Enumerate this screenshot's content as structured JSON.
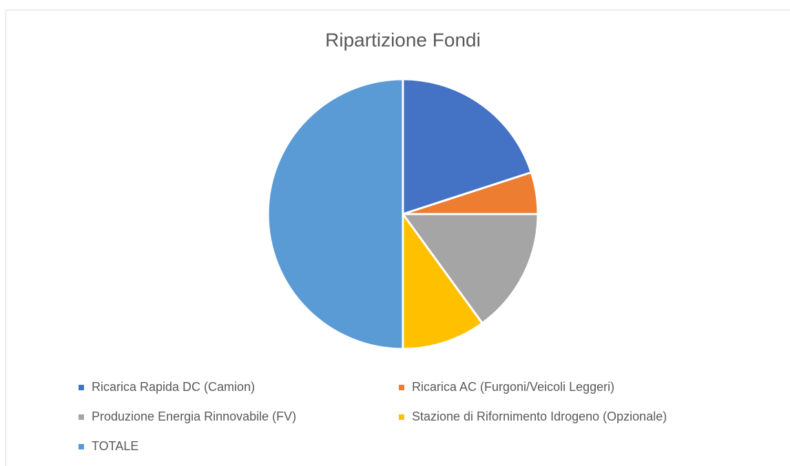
{
  "chart_data": {
    "type": "pie",
    "title": "Ripartizione Fondi",
    "categories": [
      "Ricarica Rapida DC (Camion)",
      "Ricarica AC (Furgoni/Veicoli Leggeri)",
      "Produzione Energia Rinnovabile (FV)",
      "Stazione di Rifornimento Idrogeno (Opzionale)",
      "TOTALE"
    ],
    "values": [
      20,
      5,
      15,
      10,
      50
    ],
    "colors": [
      "#4472c4",
      "#ed7d31",
      "#a5a5a5",
      "#ffc000",
      "#5b9bd5"
    ],
    "legend": "bottom"
  }
}
